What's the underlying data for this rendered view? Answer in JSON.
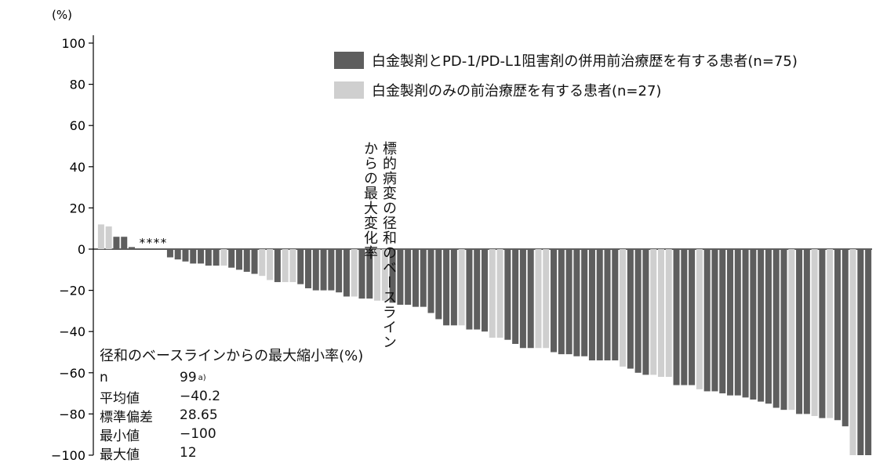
{
  "chart_data": {
    "type": "bar",
    "unit_label": "(%)",
    "ylabel_lines": [
      "標的病変の径和のベースライン",
      "からの最大変化率"
    ],
    "ylim": [
      -100,
      100
    ],
    "yticks": [
      100,
      80,
      60,
      40,
      20,
      0,
      -20,
      -40,
      -60,
      -80,
      -100
    ],
    "colors": {
      "combo": "#5e5e5e",
      "platinum_only": "#cfcfcf"
    },
    "legend": [
      {
        "key": "combo",
        "label": "白金製剤とPD-1/PD-L1阻害剤の併用前治療歴を有する患者(n=75)"
      },
      {
        "key": "platinum_only",
        "label": "白金製剤のみの前治療歴を有する患者(n=27)"
      }
    ],
    "zero_marker": "****",
    "bars": [
      {
        "v": 12,
        "g": "platinum_only"
      },
      {
        "v": 11,
        "g": "platinum_only"
      },
      {
        "v": 6,
        "g": "combo"
      },
      {
        "v": 6,
        "g": "combo"
      },
      {
        "v": 1,
        "g": "combo"
      },
      {
        "v": 0,
        "g": "combo"
      },
      {
        "v": 0,
        "g": "combo"
      },
      {
        "v": 0,
        "g": "combo"
      },
      {
        "v": 0,
        "g": "combo"
      },
      {
        "v": -4,
        "g": "combo"
      },
      {
        "v": -5,
        "g": "combo"
      },
      {
        "v": -6,
        "g": "combo"
      },
      {
        "v": -7,
        "g": "combo"
      },
      {
        "v": -7,
        "g": "combo"
      },
      {
        "v": -8,
        "g": "combo"
      },
      {
        "v": -8,
        "g": "combo"
      },
      {
        "v": -8,
        "g": "platinum_only"
      },
      {
        "v": -9,
        "g": "combo"
      },
      {
        "v": -10,
        "g": "combo"
      },
      {
        "v": -11,
        "g": "combo"
      },
      {
        "v": -12,
        "g": "combo"
      },
      {
        "v": -13,
        "g": "platinum_only"
      },
      {
        "v": -15,
        "g": "platinum_only"
      },
      {
        "v": -16,
        "g": "combo"
      },
      {
        "v": -16,
        "g": "platinum_only"
      },
      {
        "v": -16,
        "g": "platinum_only"
      },
      {
        "v": -17,
        "g": "combo"
      },
      {
        "v": -19,
        "g": "combo"
      },
      {
        "v": -20,
        "g": "combo"
      },
      {
        "v": -20,
        "g": "combo"
      },
      {
        "v": -20,
        "g": "combo"
      },
      {
        "v": -21,
        "g": "combo"
      },
      {
        "v": -23,
        "g": "combo"
      },
      {
        "v": -23,
        "g": "platinum_only"
      },
      {
        "v": -24,
        "g": "combo"
      },
      {
        "v": -24,
        "g": "combo"
      },
      {
        "v": -25,
        "g": "platinum_only"
      },
      {
        "v": -25,
        "g": "platinum_only"
      },
      {
        "v": -26,
        "g": "combo"
      },
      {
        "v": -27,
        "g": "combo"
      },
      {
        "v": -27,
        "g": "combo"
      },
      {
        "v": -28,
        "g": "combo"
      },
      {
        "v": -28,
        "g": "combo"
      },
      {
        "v": -31,
        "g": "combo"
      },
      {
        "v": -34,
        "g": "combo"
      },
      {
        "v": -37,
        "g": "combo"
      },
      {
        "v": -37,
        "g": "combo"
      },
      {
        "v": -37,
        "g": "platinum_only"
      },
      {
        "v": -39,
        "g": "combo"
      },
      {
        "v": -39,
        "g": "combo"
      },
      {
        "v": -40,
        "g": "combo"
      },
      {
        "v": -43,
        "g": "platinum_only"
      },
      {
        "v": -43,
        "g": "platinum_only"
      },
      {
        "v": -44,
        "g": "combo"
      },
      {
        "v": -46,
        "g": "combo"
      },
      {
        "v": -48,
        "g": "combo"
      },
      {
        "v": -48,
        "g": "combo"
      },
      {
        "v": -48,
        "g": "platinum_only"
      },
      {
        "v": -48,
        "g": "platinum_only"
      },
      {
        "v": -50,
        "g": "combo"
      },
      {
        "v": -51,
        "g": "combo"
      },
      {
        "v": -51,
        "g": "combo"
      },
      {
        "v": -52,
        "g": "combo"
      },
      {
        "v": -52,
        "g": "combo"
      },
      {
        "v": -54,
        "g": "combo"
      },
      {
        "v": -54,
        "g": "combo"
      },
      {
        "v": -54,
        "g": "combo"
      },
      {
        "v": -54,
        "g": "combo"
      },
      {
        "v": -57,
        "g": "platinum_only"
      },
      {
        "v": -58,
        "g": "combo"
      },
      {
        "v": -60,
        "g": "combo"
      },
      {
        "v": -61,
        "g": "combo"
      },
      {
        "v": -61,
        "g": "platinum_only"
      },
      {
        "v": -62,
        "g": "platinum_only"
      },
      {
        "v": -62,
        "g": "platinum_only"
      },
      {
        "v": -66,
        "g": "combo"
      },
      {
        "v": -66,
        "g": "combo"
      },
      {
        "v": -66,
        "g": "combo"
      },
      {
        "v": -68,
        "g": "platinum_only"
      },
      {
        "v": -69,
        "g": "combo"
      },
      {
        "v": -69,
        "g": "combo"
      },
      {
        "v": -70,
        "g": "combo"
      },
      {
        "v": -71,
        "g": "combo"
      },
      {
        "v": -71,
        "g": "combo"
      },
      {
        "v": -72,
        "g": "combo"
      },
      {
        "v": -73,
        "g": "combo"
      },
      {
        "v": -74,
        "g": "combo"
      },
      {
        "v": -75,
        "g": "combo"
      },
      {
        "v": -77,
        "g": "combo"
      },
      {
        "v": -78,
        "g": "combo"
      },
      {
        "v": -78,
        "g": "platinum_only"
      },
      {
        "v": -80,
        "g": "combo"
      },
      {
        "v": -80,
        "g": "combo"
      },
      {
        "v": -81,
        "g": "platinum_only"
      },
      {
        "v": -82,
        "g": "combo"
      },
      {
        "v": -82,
        "g": "platinum_only"
      },
      {
        "v": -83,
        "g": "combo"
      },
      {
        "v": -86,
        "g": "combo"
      },
      {
        "v": -100,
        "g": "platinum_only"
      },
      {
        "v": -100,
        "g": "combo"
      },
      {
        "v": -100,
        "g": "combo"
      }
    ],
    "stats": {
      "title": "径和のベースラインからの最大縮小率(%)",
      "rows": [
        {
          "label": "n",
          "value": "99",
          "note": "a)"
        },
        {
          "label": "平均値",
          "value": "−40.2"
        },
        {
          "label": "標準偏差",
          "value": "28.65"
        },
        {
          "label": "最小値",
          "value": "−100"
        },
        {
          "label": "最大値",
          "value": "12"
        }
      ]
    }
  }
}
